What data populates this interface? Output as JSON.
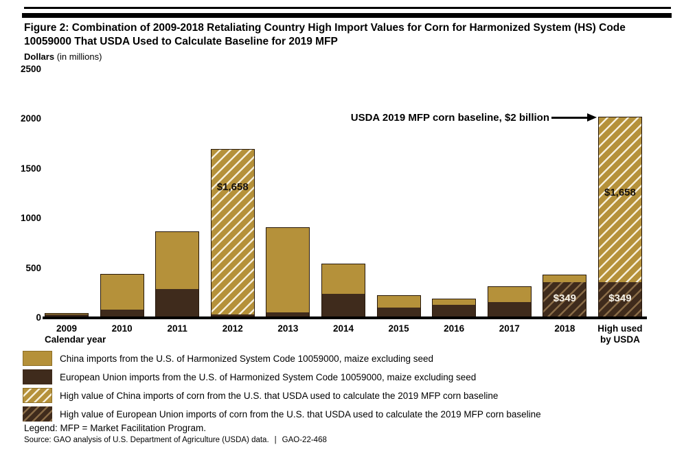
{
  "header": {
    "title": "Figure 2: Combination of 2009-2018 Retaliating Country High Import Values for Corn for Harmonized System (HS) Code 10059000 That USDA Used to Calculate Baseline for 2019 MFP"
  },
  "axis": {
    "unit_label_bold": "Dollars",
    "unit_label_rest": " (in millions)",
    "y_ticks": [
      "2500",
      "2000",
      "1500",
      "1000",
      "500",
      "0"
    ],
    "x_axis_title": "Calendar year"
  },
  "annotation": {
    "text": "USDA 2019 MFP corn baseline, $2 billion"
  },
  "chart_data": {
    "type": "bar",
    "stacked": true,
    "title": "Figure 2: Combination of 2009-2018 Retaliating Country High Import Values for Corn for Harmonized System (HS) Code 10059000 That USDA Used to Calculate Baseline for 2019 MFP",
    "xlabel": "Calendar year",
    "ylabel": "Dollars (in millions)",
    "ylim": [
      0,
      2500
    ],
    "y_tick_values": [
      0,
      500,
      1000,
      1500,
      2000,
      2500
    ],
    "grid": false,
    "legend_position": "bottom",
    "categories": [
      "2009",
      "2010",
      "2011",
      "2012",
      "2013",
      "2014",
      "2015",
      "2016",
      "2017",
      "2018",
      "High used\nby USDA"
    ],
    "series": [
      {
        "key": "china",
        "name": "China imports from the U.S. of Harmonized System Code 10059000, maize excluding seed",
        "color": "#b5913a",
        "values": [
          5,
          355,
          570,
          1658,
          850,
          300,
          120,
          55,
          155,
          72,
          1658
        ],
        "hatched": [
          false,
          false,
          false,
          true,
          false,
          false,
          false,
          false,
          false,
          false,
          true
        ]
      },
      {
        "key": "eu",
        "name": "European Union imports from the U.S. of Harmonized System Code 10059000, maize excluding seed",
        "color": "#3f2b1c",
        "values": [
          28,
          75,
          285,
          25,
          48,
          235,
          95,
          125,
          155,
          349,
          349
        ],
        "hatched": [
          false,
          false,
          false,
          false,
          false,
          false,
          false,
          false,
          false,
          true,
          true
        ]
      }
    ],
    "segment_labels": [
      {
        "category_index": 3,
        "text": "$1,658",
        "style": "on-gold",
        "center_value": 1310
      },
      {
        "category_index": 9,
        "text": "$349",
        "style": "on-dark",
        "center_value": 195
      },
      {
        "category_index": 10,
        "text": "$1,658",
        "style": "on-gold",
        "center_value": 1255
      },
      {
        "category_index": 10,
        "text": "$349",
        "style": "on-dark",
        "center_value": 195
      }
    ],
    "annotation": {
      "text": "USDA 2019 MFP corn baseline, $2 billion",
      "points_to": "High used\nby USDA"
    }
  },
  "legend": {
    "items": [
      {
        "swatch": "gold",
        "label": "China imports from the U.S. of Harmonized System Code 10059000, maize excluding seed"
      },
      {
        "swatch": "dark",
        "label": "European Union imports from the U.S. of Harmonized System Code 10059000, maize excluding seed"
      },
      {
        "swatch": "gold-hatch",
        "label": "High value of China imports of corn from the U.S. that USDA used to calculate the 2019 MFP corn baseline"
      },
      {
        "swatch": "dark-hatch",
        "label": "High value of European Union imports of corn from the U.S. that USDA used to calculate the 2019 MFP corn baseline"
      }
    ]
  },
  "footer": {
    "legend_note": "Legend: MFP = Market Facilitation Program.",
    "source_text": "Source: GAO analysis of U.S. Department of Agriculture (USDA) data.",
    "divider": "|",
    "report_id": "GAO-22-468"
  },
  "colors": {
    "china_gold": "#b5913a",
    "eu_brown": "#3f2b1c",
    "gold_hatch_line": "#f6efdb",
    "dark_hatch_line": "#8a6c47",
    "rule_black": "#000000"
  }
}
